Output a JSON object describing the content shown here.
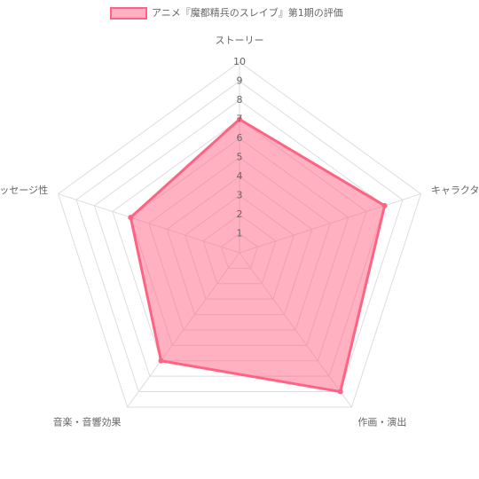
{
  "chart_data": {
    "type": "radar",
    "categories": [
      "ストーリー",
      "キャラクター",
      "作画・演出",
      "音楽・音響効果",
      "メッセージ性"
    ],
    "series": [
      {
        "name": "アニメ『魔都精兵のスレイブ』第1期の評価",
        "color": "#ff6384",
        "values": [
          7,
          8,
          9,
          7,
          6
        ]
      }
    ],
    "rlim": [
      0,
      10
    ],
    "rticks": [
      1,
      2,
      3,
      4,
      5,
      6,
      7,
      8,
      9,
      10
    ],
    "grid": true,
    "legend": "top"
  }
}
